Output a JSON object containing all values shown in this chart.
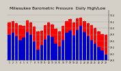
{
  "title": "Milwaukee Barometric Pressure  Daily High/Low",
  "title_fontsize": 4.2,
  "bar_color_high": "#ff0000",
  "bar_color_low": "#0000cd",
  "background_color": "#d4d0c8",
  "plot_bg_color": "#d4d0c8",
  "ylim": [
    29.0,
    30.55
  ],
  "ytick_labels": [
    "29.0",
    "29.2",
    "29.4",
    "29.6",
    "29.8",
    "30.0",
    "30.2",
    "30.4"
  ],
  "ytick_vals": [
    29.0,
    29.2,
    29.4,
    29.6,
    29.8,
    30.0,
    30.2,
    30.4
  ],
  "days": [
    "1",
    "2",
    "3",
    "4",
    "5",
    "6",
    "7",
    "8",
    "9",
    "10",
    "11",
    "12",
    "13",
    "14",
    "15",
    "16",
    "17",
    "18",
    "19",
    "20",
    "21",
    "22",
    "23",
    "24",
    "25",
    "26",
    "27",
    "28"
  ],
  "highs": [
    30.18,
    30.22,
    30.15,
    30.1,
    30.08,
    30.25,
    30.18,
    30.05,
    29.9,
    29.92,
    30.1,
    30.18,
    30.12,
    29.98,
    29.9,
    30.08,
    30.22,
    30.28,
    30.18,
    30.3,
    30.32,
    30.22,
    30.15,
    30.1,
    30.0,
    29.9,
    29.82,
    29.8
  ],
  "lows": [
    29.8,
    29.85,
    29.75,
    29.62,
    29.7,
    29.88,
    29.8,
    29.58,
    29.32,
    29.48,
    29.65,
    29.78,
    29.72,
    29.52,
    29.42,
    29.62,
    29.85,
    29.92,
    29.78,
    29.95,
    30.08,
    29.88,
    29.75,
    29.62,
    29.52,
    29.4,
    29.3,
    29.18
  ]
}
